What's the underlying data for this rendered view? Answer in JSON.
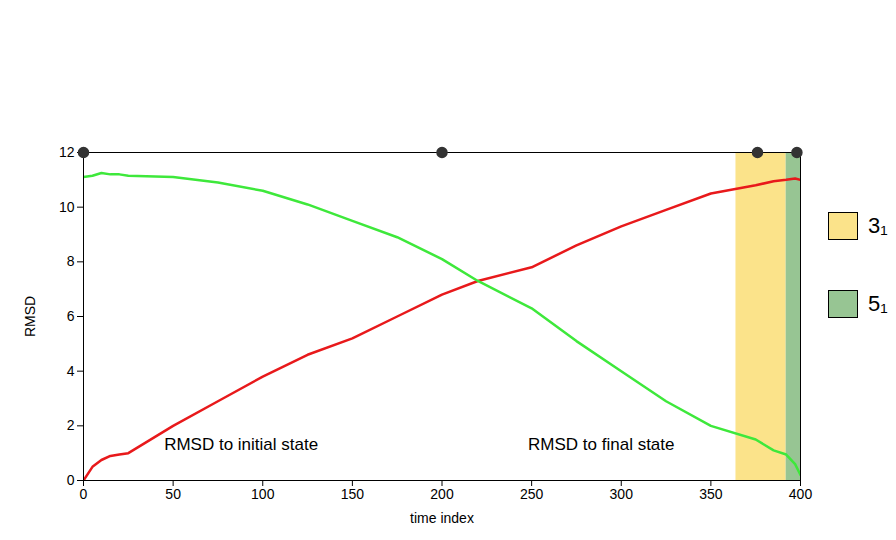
{
  "chart_data": {
    "type": "line",
    "xlabel": "time index",
    "ylabel": "RMSD",
    "xlim": [
      0,
      400
    ],
    "ylim": [
      0,
      12
    ],
    "xticks": [
      0,
      50,
      100,
      150,
      200,
      250,
      300,
      350,
      400
    ],
    "yticks": [
      0,
      2,
      4,
      6,
      8,
      10,
      12
    ],
    "grid": false,
    "legend": "right",
    "x": [
      0,
      5,
      10,
      15,
      20,
      25,
      50,
      75,
      100,
      125,
      150,
      175,
      200,
      220,
      250,
      275,
      300,
      325,
      350,
      375,
      385,
      392,
      397,
      400
    ],
    "series": [
      {
        "name": "RMSD to initial state",
        "color": "#e8191b",
        "label_at": [
          45,
          1.3
        ],
        "values": [
          0,
          0.5,
          0.75,
          0.9,
          0.95,
          1.0,
          2.0,
          2.9,
          3.8,
          4.6,
          5.2,
          6.0,
          6.8,
          7.3,
          7.8,
          8.6,
          9.3,
          9.9,
          10.5,
          10.8,
          10.95,
          11.0,
          11.05,
          11.0
        ]
      },
      {
        "name": "RMSD to final state",
        "color": "#3ee83b",
        "label_at": [
          248,
          1.3
        ],
        "values": [
          11.1,
          11.15,
          11.25,
          11.2,
          11.2,
          11.15,
          11.1,
          10.9,
          10.6,
          10.1,
          9.5,
          8.9,
          8.1,
          7.3,
          6.3,
          5.1,
          4.0,
          2.9,
          2.0,
          1.5,
          1.1,
          0.95,
          0.6,
          0.2
        ]
      }
    ],
    "regions": [
      {
        "name": "3₁",
        "from": 364,
        "to": 392,
        "color": "#fbe38a"
      },
      {
        "name": "5₁",
        "from": 392,
        "to": 400,
        "color": "#97c593"
      }
    ],
    "snapshots": [
      0,
      200,
      376,
      398
    ]
  }
}
